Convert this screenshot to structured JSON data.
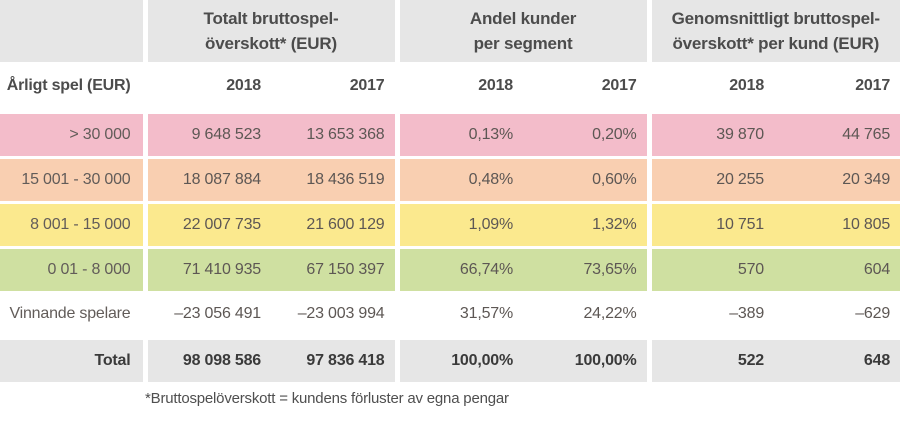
{
  "table": {
    "group_headers": [
      {
        "line1": "Totalt bruttospel-",
        "line2": "överskott* (EUR)"
      },
      {
        "line1": "Andel kunder",
        "line2": "per segment"
      },
      {
        "line1": "Genomsnittligt bruttospel-",
        "line2": "överskott* per kund (EUR)"
      }
    ],
    "row_header_label": "Årligt spel (EUR)",
    "year_headers": [
      "2018",
      "2017",
      "2018",
      "2017",
      "2018",
      "2017"
    ],
    "rows": [
      {
        "label": "> 30 000",
        "values": [
          "9 648 523",
          "13 653 368",
          "0,13%",
          "0,20%",
          "39 870",
          "44 765"
        ],
        "bg": "#f3bcca",
        "is_total": false
      },
      {
        "label": "15 001 - 30 000",
        "values": [
          "18 087 884",
          "18 436 519",
          "0,48%",
          "0,60%",
          "20 255",
          "20 349"
        ],
        "bg": "#f9cfb1",
        "is_total": false
      },
      {
        "label": "8 001 - 15 000",
        "values": [
          "22 007 735",
          "21 600 129",
          "1,09%",
          "1,32%",
          "10 751",
          "10 805"
        ],
        "bg": "#fbe98e",
        "is_total": false
      },
      {
        "label": "0 01 - 8 000",
        "values": [
          "71 410 935",
          "67 150 397",
          "66,74%",
          "73,65%",
          "570",
          "604"
        ],
        "bg": "#cfe0a1",
        "is_total": false
      },
      {
        "label": "Vinnande spelare",
        "values": [
          "–23 056 491",
          "–23 003 994",
          "31,57%",
          "24,22%",
          "–389",
          "–629"
        ],
        "bg": "#ffffff",
        "is_total": false
      },
      {
        "label": "Total",
        "values": [
          "98 098 586",
          "97 836 418",
          "100,00%",
          "100,00%",
          "522",
          "648"
        ],
        "bg": "#e6e6e6",
        "is_total": true
      }
    ],
    "footnote": "*Bruttospelöverskott = kundens förluster av egna pengar"
  },
  "colors": {
    "header_gray": "#e6e6e6",
    "row_pink": "#f3bcca",
    "row_peach": "#f9cfb1",
    "row_yellow": "#fbe98e",
    "row_green": "#cfe0a1",
    "total_gray": "#e6e6e6"
  }
}
